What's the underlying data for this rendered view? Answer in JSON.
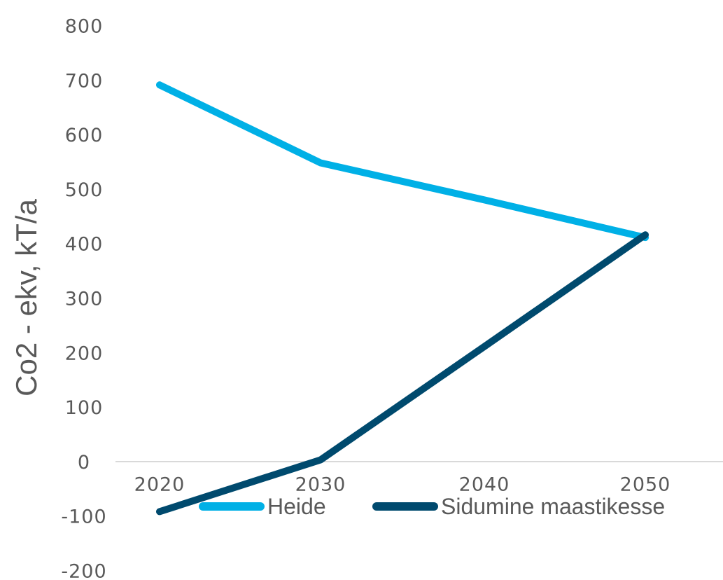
{
  "chart_data": {
    "type": "line",
    "title": "",
    "xlabel": "",
    "ylabel": "Co2 - ekv, kT/a",
    "x": [
      "2020",
      "2030",
      "2040",
      "2050"
    ],
    "yticks": [
      "800",
      "700",
      "600",
      "500",
      "400",
      "300",
      "200",
      "100",
      "0",
      "-100",
      "-200"
    ],
    "ylim": [
      -200,
      800
    ],
    "grid": false,
    "legend_position": "bottom",
    "series": [
      {
        "name": "Heide",
        "values": [
          693,
          550,
          482,
          413
        ],
        "color": "#00B0E6"
      },
      {
        "name": "Sidumine maastikesse",
        "values": [
          -90,
          5,
          213,
          418
        ],
        "color": "#004A6E"
      }
    ]
  }
}
